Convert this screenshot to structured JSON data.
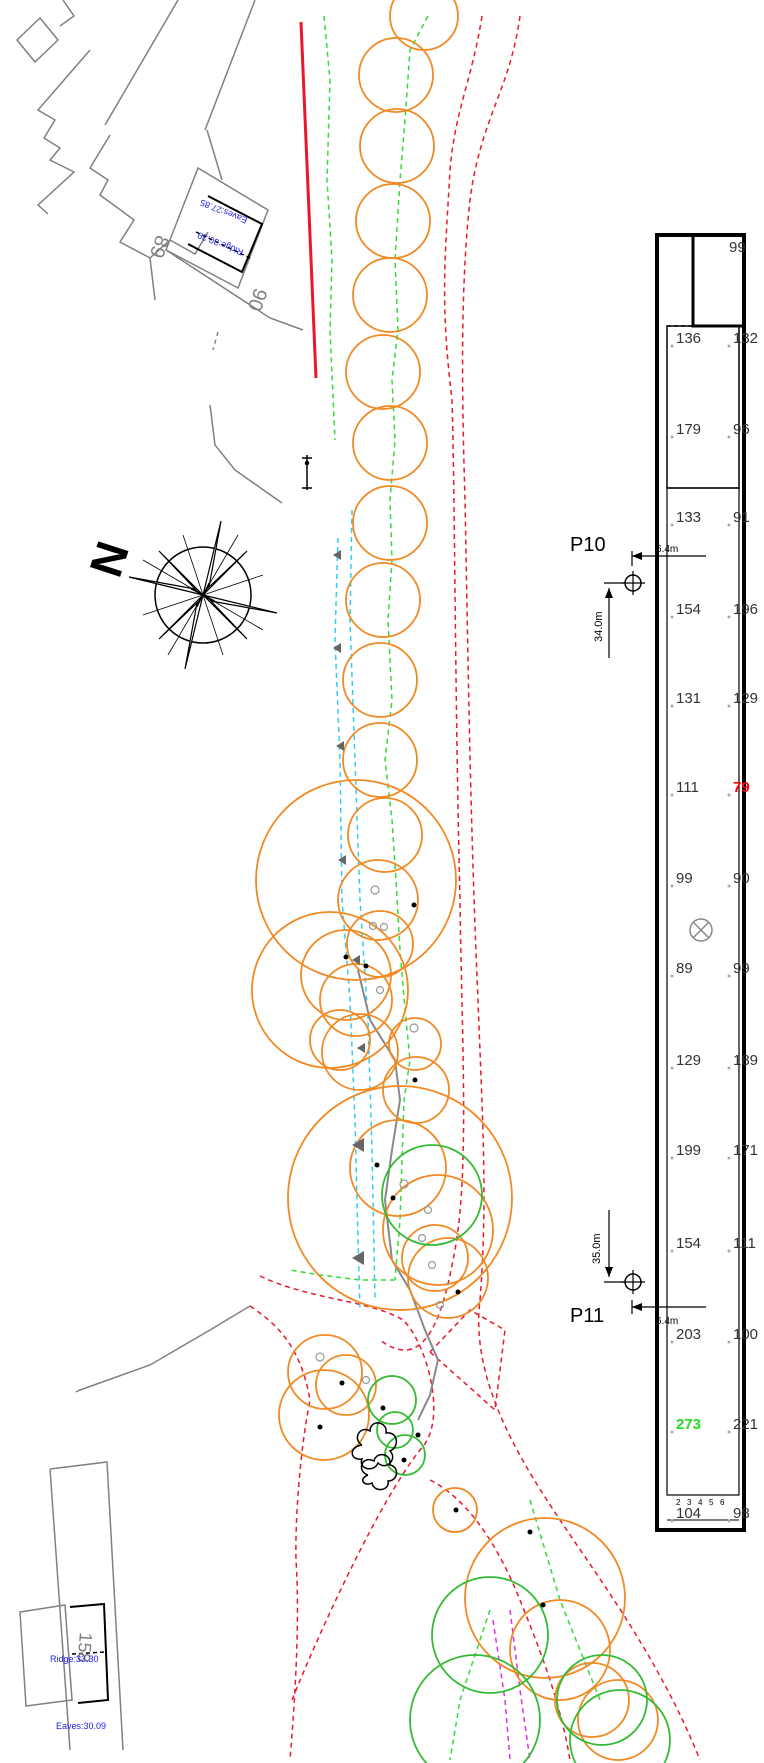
{
  "colors": {
    "tree_canopy": "#f08a24",
    "tree_canopy_green": "#33bb33",
    "red_line": "#e8192c",
    "green_dashed": "#33dd33",
    "cyan_dashed": "#33ccee",
    "building_outline": "#808080",
    "highlight_red_value": "#ff0000",
    "highlight_green_value": "#22dd22",
    "blue_label": "#2222ee"
  },
  "buildings": {
    "house_89": {
      "number": "89"
    },
    "house_90": {
      "number": "90",
      "eaves": "Eaves:27.85",
      "ridge": "Ridge:30.39"
    },
    "house_158": {
      "number": "158",
      "ridge": "Ridge:33.30",
      "eaves": "Eaves:30.09"
    }
  },
  "north_arrow": {
    "label": "N",
    "icon": "compass-rose-icon"
  },
  "markers": {
    "p10": {
      "label": "P10",
      "offset": "6.4m",
      "distance": "34.0m"
    },
    "p11": {
      "label": "P11",
      "offset": "6.4m",
      "distance": "35.0m"
    }
  },
  "strip": {
    "top_value": "99",
    "rows": [
      {
        "left": "136",
        "right": "132"
      },
      {
        "left": "179",
        "right": "96"
      },
      {
        "left": "133",
        "right": "91"
      },
      {
        "left": "154",
        "right": "196"
      },
      {
        "left": "131",
        "right": "129"
      },
      {
        "left": "111",
        "right": "79",
        "right_highlight": "red"
      },
      {
        "left": "99",
        "right": "90"
      },
      {
        "left": "89",
        "right": "99"
      },
      {
        "left": "129",
        "right": "189"
      },
      {
        "left": "199",
        "right": "171"
      },
      {
        "left": "154",
        "right": "111"
      },
      {
        "left": "203",
        "right": "100"
      },
      {
        "left": "273",
        "right": "221",
        "left_highlight": "green"
      },
      {
        "left": "104",
        "right": "98"
      }
    ],
    "scale_labels": [
      "2",
      "3",
      "4",
      "5",
      "6"
    ],
    "centre_symbol": "crossed-circle-icon"
  }
}
